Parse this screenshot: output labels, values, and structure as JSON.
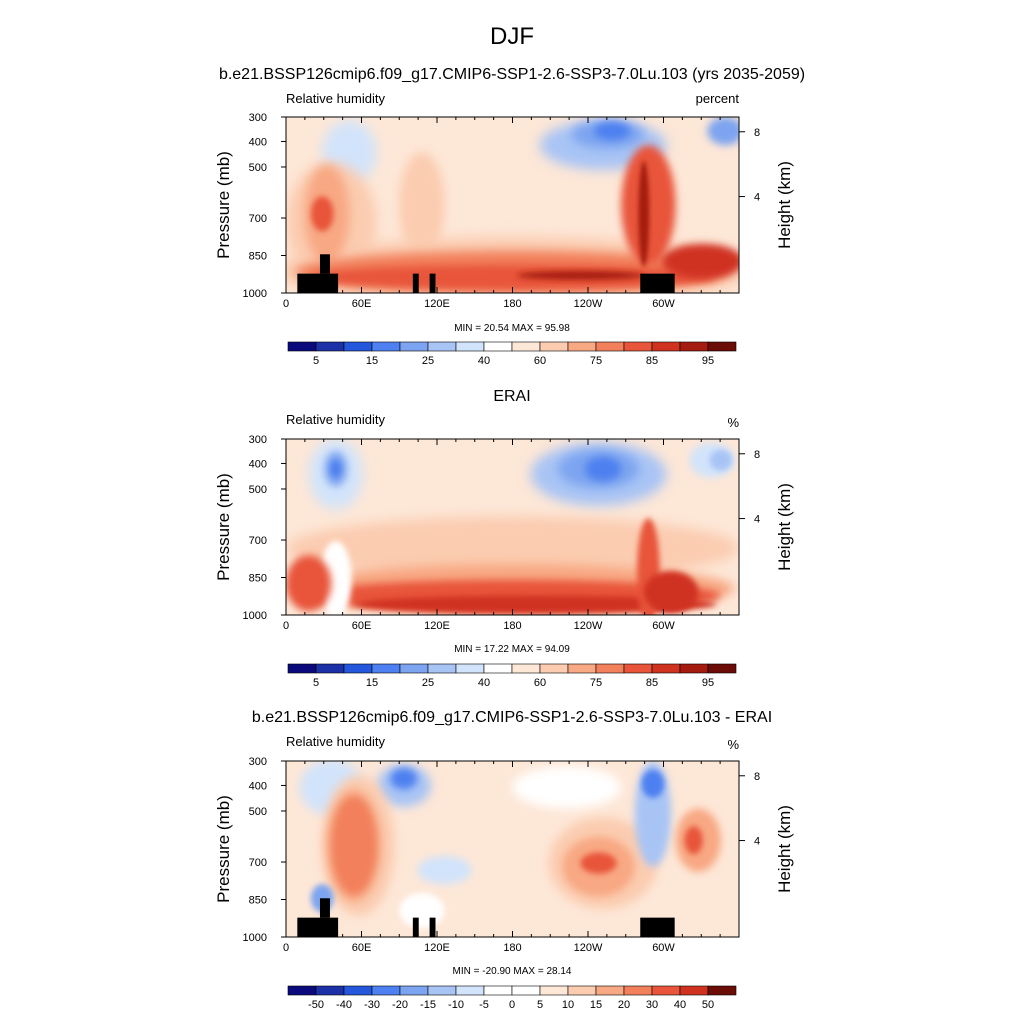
{
  "main_title": "DJF",
  "chart_data": [
    {
      "type": "heatmap",
      "id": "model",
      "title": "b.e21.BSSP126cmip6.f09_g17.CMIP6-SSP1-2.6-SSP3-7.0Lu.103 (yrs 2035-2059)",
      "left_label": "Relative humidity",
      "right_label": "percent",
      "ylabel": "Pressure (mb)",
      "y2label": "Height (km)",
      "x_ticks": [
        "0",
        "60E",
        "120E",
        "180",
        "120W",
        "60W"
      ],
      "y_ticks": [
        "300",
        "400",
        "500",
        "700",
        "850",
        "1000"
      ],
      "y2_ticks": [
        "8",
        "4"
      ],
      "min": 20.54,
      "max": 95.98,
      "stats_text": "MIN = 20.54  MAX = 95.98",
      "colorbar_labels": [
        "5",
        "15",
        "25",
        "40",
        "60",
        "75",
        "85",
        "95"
      ]
    },
    {
      "type": "heatmap",
      "id": "obs",
      "title": "ERAI",
      "left_label": "Relative humidity",
      "right_label": "%",
      "ylabel": "Pressure (mb)",
      "y2label": "Height (km)",
      "x_ticks": [
        "0",
        "60E",
        "120E",
        "180",
        "120W",
        "60W"
      ],
      "y_ticks": [
        "300",
        "400",
        "500",
        "700",
        "850",
        "1000"
      ],
      "y2_ticks": [
        "8",
        "4"
      ],
      "min": 17.22,
      "max": 94.09,
      "stats_text": "MIN = 17.22  MAX = 94.09",
      "colorbar_labels": [
        "5",
        "15",
        "25",
        "40",
        "60",
        "75",
        "85",
        "95"
      ]
    },
    {
      "type": "heatmap",
      "id": "diff",
      "title": "b.e21.BSSP126cmip6.f09_g17.CMIP6-SSP1-2.6-SSP3-7.0Lu.103 - ERAI",
      "left_label": "Relative humidity",
      "right_label": "%",
      "ylabel": "Pressure (mb)",
      "y2label": "Height (km)",
      "x_ticks": [
        "0",
        "60E",
        "120E",
        "180",
        "120W",
        "60W"
      ],
      "y_ticks": [
        "300",
        "400",
        "500",
        "700",
        "850",
        "1000"
      ],
      "y2_ticks": [
        "8",
        "4"
      ],
      "min": -20.9,
      "max": 28.14,
      "stats_text": "MIN = -20.90  MAX = 28.14",
      "colorbar_labels": [
        "-50",
        "-40",
        "-30",
        "-20",
        "-15",
        "-10",
        "-5",
        "0",
        "5",
        "10",
        "15",
        "20",
        "30",
        "40",
        "50"
      ]
    }
  ],
  "colors": {
    "abs_scale": [
      "#0a0a7d",
      "#1c31a8",
      "#2457dc",
      "#4d80f0",
      "#7da4f0",
      "#a8c4f5",
      "#d2e4fb",
      "#ffffff",
      "#fde7d7",
      "#fbccb0",
      "#f8a883",
      "#f2805b",
      "#e8553a",
      "#d03220",
      "#a51b10",
      "#6b0c07"
    ],
    "diff_scale": [
      "#0a0a7d",
      "#1c31a8",
      "#2457dc",
      "#4d80f0",
      "#7da4f0",
      "#a8c4f5",
      "#d2e4fb",
      "#ffffff",
      "#ffffff",
      "#fde7d7",
      "#fbccb0",
      "#f8a883",
      "#f2805b",
      "#e8553a",
      "#d03220",
      "#6b0c07"
    ],
    "topography": "#000000"
  }
}
